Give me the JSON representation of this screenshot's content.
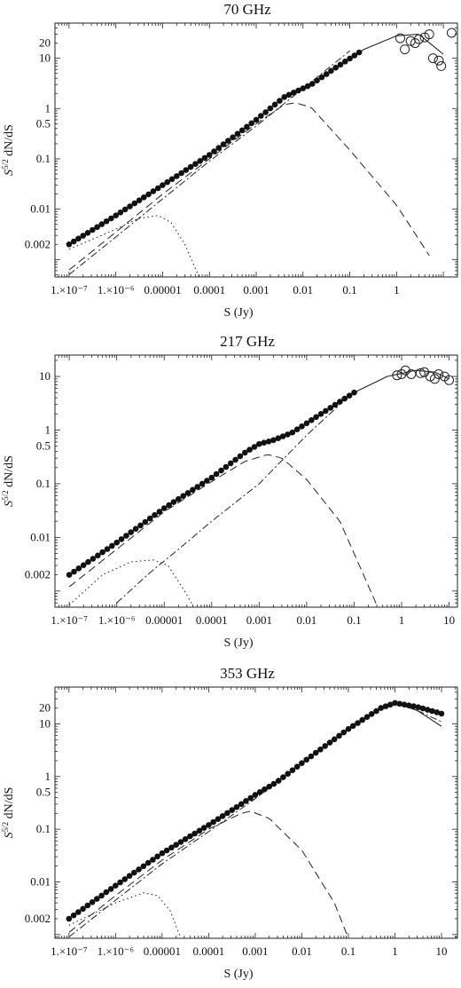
{
  "chart_data": [
    {
      "type": "scatter",
      "title": "70 GHz",
      "xlabel": "S (Jy)",
      "ylabel_main": "S",
      "ylabel_sup": "5/2",
      "ylabel_rest": " dN/dS",
      "x_log": true,
      "y_log": true,
      "xlim": [
        5e-08,
        20
      ],
      "ylim": [
        0.00045,
        50
      ],
      "xticks": [
        1e-07,
        1e-06,
        1e-05,
        0.0001,
        0.001,
        0.01,
        0.1,
        1
      ],
      "xtick_labels": [
        "1.×10⁻⁷",
        "1.×10⁻⁶",
        "0.00001",
        "0.0001",
        "0.001",
        "0.01",
        "0.1",
        "1"
      ],
      "yticks": [
        0.002,
        0.01,
        0.1,
        0.5,
        1,
        10,
        20
      ],
      "ytick_labels": [
        "0.002",
        "0.01",
        "0.1",
        "0.5",
        "1",
        "10",
        "20"
      ],
      "grid": false,
      "dots_range": [
        1e-07,
        0.18
      ],
      "series": [
        {
          "style": "solid",
          "points": [
            [
              1e-07,
              0.002
            ],
            [
              1e-06,
              0.0075
            ],
            [
              1e-05,
              0.03
            ],
            [
              0.0001,
              0.12
            ],
            [
              0.001,
              0.6
            ],
            [
              0.004,
              1.7
            ],
            [
              0.008,
              2.3
            ],
            [
              0.015,
              3
            ],
            [
              0.05,
              6.5
            ],
            [
              0.2,
              15
            ],
            [
              1,
              28
            ],
            [
              3,
              30
            ],
            [
              10,
              12
            ]
          ]
        },
        {
          "style": "dashed",
          "points": [
            [
              1e-07,
              0.00062
            ],
            [
              1e-06,
              0.0035
            ],
            [
              1e-05,
              0.02
            ],
            [
              0.0001,
              0.1
            ],
            [
              0.001,
              0.5
            ],
            [
              0.004,
              1.2
            ],
            [
              0.007,
              1.3
            ],
            [
              0.015,
              1.05
            ],
            [
              0.1,
              0.15
            ],
            [
              1,
              0.012
            ],
            [
              5,
              0.0012
            ]
          ]
        },
        {
          "style": "dashdot",
          "points": [
            [
              1e-07,
              0.0005
            ],
            [
              1e-06,
              0.0028
            ],
            [
              1e-05,
              0.016
            ],
            [
              0.0001,
              0.09
            ],
            [
              0.001,
              0.45
            ],
            [
              0.01,
              2.5
            ],
            [
              0.1,
              14
            ]
          ]
        },
        {
          "style": "dotted",
          "points": [
            [
              1e-07,
              0.0016
            ],
            [
              1e-06,
              0.004
            ],
            [
              3e-06,
              0.0065
            ],
            [
              8e-06,
              0.0075
            ],
            [
              1.5e-05,
              0.0055
            ],
            [
              3e-05,
              0.002
            ],
            [
              6e-05,
              0.00045
            ]
          ]
        }
      ],
      "open_circles": [
        [
          1.2,
          25
        ],
        [
          1.5,
          15
        ],
        [
          2,
          22
        ],
        [
          2.5,
          20
        ],
        [
          3,
          24
        ],
        [
          4,
          26
        ],
        [
          5,
          30
        ],
        [
          6,
          10
        ],
        [
          8,
          9
        ],
        [
          9,
          7
        ],
        [
          15,
          32
        ]
      ]
    },
    {
      "type": "scatter",
      "title": "217 GHz",
      "xlabel": "S (Jy)",
      "ylabel_main": "S",
      "ylabel_sup": "5/2",
      "ylabel_rest": " dN/dS",
      "x_log": true,
      "y_log": true,
      "xlim": [
        5e-08,
        15
      ],
      "ylim": [
        0.0005,
        25
      ],
      "xticks": [
        1e-07,
        1e-06,
        1e-05,
        0.0001,
        0.001,
        0.01,
        0.1,
        1,
        10
      ],
      "xtick_labels": [
        "1.×10⁻⁷",
        "1.×10⁻⁶",
        "0.00001",
        "0.0001",
        "0.001",
        "0.01",
        "0.1",
        "1",
        "10"
      ],
      "yticks": [
        0.002,
        0.01,
        0.1,
        0.5,
        1,
        10
      ],
      "ytick_labels": [
        "0.002",
        "0.01",
        "0.1",
        "0.5",
        "1",
        "10"
      ],
      "grid": false,
      "dots_range": [
        1e-07,
        0.12
      ],
      "series": [
        {
          "style": "solid",
          "points": [
            [
              1e-07,
              0.002
            ],
            [
              1e-06,
              0.008
            ],
            [
              1e-05,
              0.035
            ],
            [
              0.0001,
              0.13
            ],
            [
              0.0005,
              0.38
            ],
            [
              0.001,
              0.55
            ],
            [
              0.002,
              0.65
            ],
            [
              0.005,
              0.9
            ],
            [
              0.02,
              2
            ],
            [
              0.1,
              5
            ],
            [
              0.5,
              10
            ],
            [
              2,
              13
            ],
            [
              5,
              12
            ],
            [
              10,
              9
            ]
          ]
        },
        {
          "style": "dashed",
          "points": [
            [
              1e-07,
              0.0012
            ],
            [
              1e-06,
              0.006
            ],
            [
              1e-05,
              0.03
            ],
            [
              0.0001,
              0.11
            ],
            [
              0.0005,
              0.26
            ],
            [
              0.0015,
              0.35
            ],
            [
              0.003,
              0.3
            ],
            [
              0.01,
              0.12
            ],
            [
              0.05,
              0.02
            ],
            [
              0.3,
              0.00055
            ]
          ]
        },
        {
          "style": "dashdot",
          "points": [
            [
              1e-06,
              0.0006
            ],
            [
              5e-06,
              0.0022
            ],
            [
              2e-05,
              0.006
            ],
            [
              0.0001,
              0.02
            ],
            [
              0.001,
              0.1
            ],
            [
              0.01,
              0.8
            ],
            [
              0.05,
              3
            ]
          ]
        },
        {
          "style": "dotted",
          "points": [
            [
              1e-07,
              0.00055
            ],
            [
              5e-07,
              0.002
            ],
            [
              2e-06,
              0.0035
            ],
            [
              6e-06,
              0.0038
            ],
            [
              1.2e-05,
              0.003
            ],
            [
              2.5e-05,
              0.0011
            ],
            [
              4e-05,
              0.00055
            ]
          ]
        }
      ],
      "open_circles": [
        [
          0.8,
          10.5
        ],
        [
          1,
          11
        ],
        [
          1.2,
          13
        ],
        [
          1.6,
          11
        ],
        [
          2.5,
          11.5
        ],
        [
          3,
          12
        ],
        [
          4,
          10
        ],
        [
          5,
          9
        ],
        [
          6,
          11
        ],
        [
          8,
          10
        ],
        [
          10,
          8.5
        ]
      ]
    },
    {
      "type": "scatter",
      "title": "353 GHz",
      "xlabel": "S (Jy)",
      "ylabel_main": "S",
      "ylabel_sup": "5/2",
      "ylabel_rest": " dN/dS",
      "x_log": true,
      "y_log": true,
      "xlim": [
        5e-08,
        22
      ],
      "ylim": [
        0.00085,
        50
      ],
      "xticks": [
        1e-07,
        1e-06,
        1e-05,
        0.0001,
        0.001,
        0.01,
        0.1,
        1,
        10
      ],
      "xtick_labels": [
        "1.×10⁻⁷",
        "1.×10⁻⁶",
        "0.00001",
        "0.0001",
        "0.001",
        "0.01",
        "0.1",
        "1",
        "10"
      ],
      "yticks": [
        0.002,
        0.01,
        0.1,
        0.5,
        1,
        10,
        20
      ],
      "ytick_labels": [
        "0.002",
        "0.01",
        "0.1",
        "0.5",
        "1",
        "10",
        "20"
      ],
      "grid": false,
      "dots_range": [
        1e-07,
        12
      ],
      "series": [
        {
          "style": "solid",
          "points": [
            [
              1e-07,
              0.002
            ],
            [
              1e-06,
              0.0085
            ],
            [
              1e-05,
              0.035
            ],
            [
              0.0001,
              0.12
            ],
            [
              0.0005,
              0.3
            ],
            [
              0.001,
              0.45
            ],
            [
              0.003,
              0.8
            ],
            [
              0.01,
              1.8
            ],
            [
              0.1,
              8
            ],
            [
              0.5,
              20
            ],
            [
              1,
              25
            ],
            [
              3,
              18
            ],
            [
              10,
              9
            ]
          ]
        },
        {
          "style": "dashed",
          "points": [
            [
              1e-07,
              0.0011
            ],
            [
              1e-06,
              0.0055
            ],
            [
              1e-05,
              0.026
            ],
            [
              0.0001,
              0.1
            ],
            [
              0.0005,
              0.2
            ],
            [
              0.0008,
              0.22
            ],
            [
              0.002,
              0.16
            ],
            [
              0.01,
              0.04
            ],
            [
              0.05,
              0.004
            ],
            [
              0.1,
              0.00085
            ]
          ]
        },
        {
          "style": "dashdot",
          "points": [
            [
              1e-07,
              0.0009
            ],
            [
              1e-06,
              0.0045
            ],
            [
              1e-05,
              0.022
            ],
            [
              0.0001,
              0.09
            ],
            [
              0.001,
              0.38
            ],
            [
              0.01,
              1.8
            ],
            [
              0.1,
              8
            ],
            [
              0.5,
              20
            ],
            [
              1,
              25
            ],
            [
              3,
              18
            ],
            [
              10,
              11
            ]
          ]
        },
        {
          "style": "dotted",
          "points": [
            [
              1e-07,
              0.0015
            ],
            [
              1e-06,
              0.004
            ],
            [
              4e-06,
              0.0062
            ],
            [
              8e-06,
              0.0055
            ],
            [
              1.5e-05,
              0.0028
            ],
            [
              2.5e-05,
              0.00085
            ]
          ]
        }
      ],
      "dots_curve": [
        [
          1e-07,
          0.002
        ],
        [
          1e-06,
          0.0085
        ],
        [
          1e-05,
          0.035
        ],
        [
          0.0001,
          0.12
        ],
        [
          0.0005,
          0.3
        ],
        [
          0.001,
          0.45
        ],
        [
          0.003,
          0.8
        ],
        [
          0.01,
          1.8
        ],
        [
          0.1,
          8
        ],
        [
          0.5,
          20
        ],
        [
          1,
          25
        ],
        [
          3,
          21
        ],
        [
          12,
          15
        ]
      ],
      "open_circles": []
    }
  ]
}
